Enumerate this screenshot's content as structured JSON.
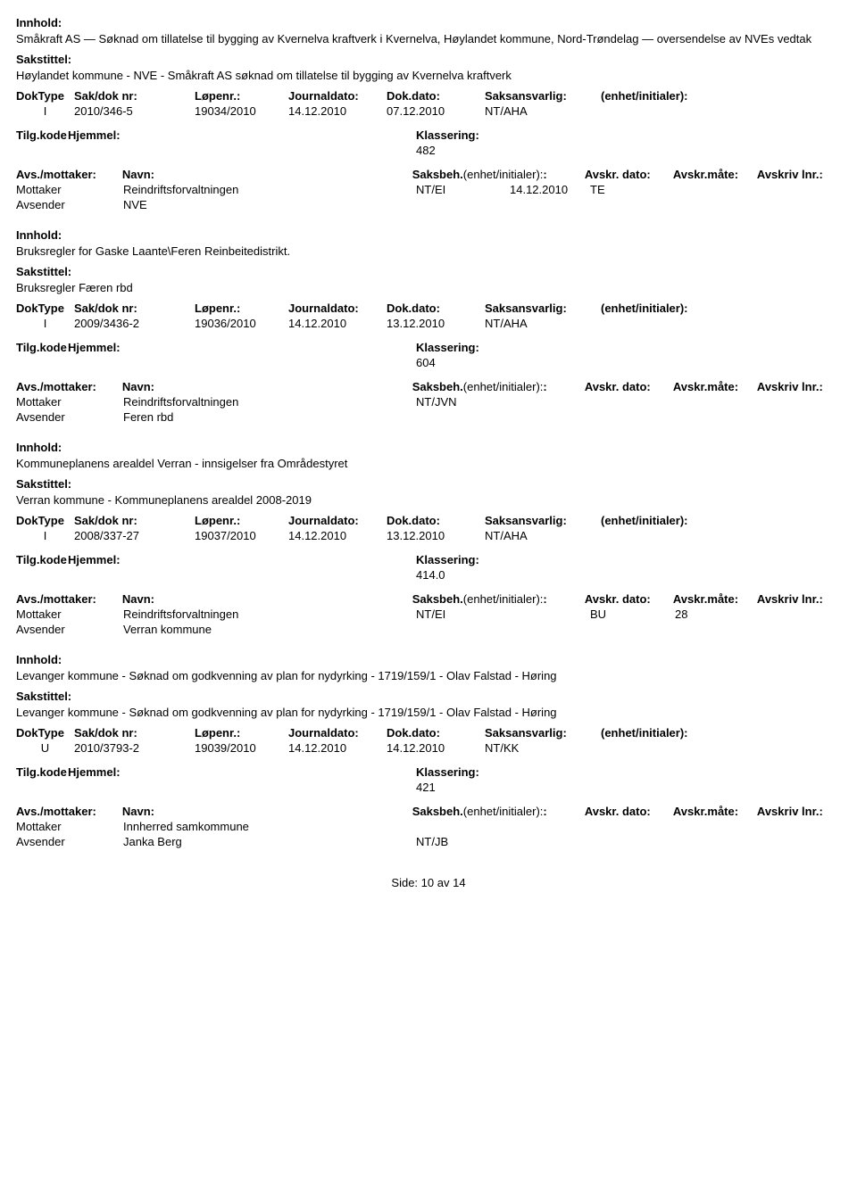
{
  "labels": {
    "innhold": "Innhold:",
    "sakstittel": "Sakstittel:",
    "doktype": "DokType",
    "sakdok": "Sak/dok nr:",
    "lopenr": "Løpenr.:",
    "journaldato": "Journaldato:",
    "dokdato": "Dok.dato:",
    "saksansvarlig": "Saksansvarlig:",
    "enhet": "(enhet/initialer):",
    "tilgkode": "Tilg.kode",
    "hjemmel": "Hjemmel:",
    "klassering": "Klassering:",
    "avsmottaker": "Avs./mottaker:",
    "navn": "Navn:",
    "saksbeh": "Saksbeh.",
    "avskrdato": "Avskr. dato:",
    "avskrmate": "Avskr.måte:",
    "avskrivlnr": "Avskriv lnr.:",
    "mottaker": "Mottaker",
    "avsender": "Avsender"
  },
  "records": [
    {
      "innhold": "Småkraft AS — Søknad om tillatelse til bygging av Kvernelva kraftverk i Kvernelva, Høylandet kommune, Nord-Trøndelag — oversendelse av NVEs vedtak",
      "sakstittel": "Høylandet kommune - NVE - Småkraft AS søknad om tillatelse til bygging av Kvernelva kraftverk",
      "doktype": "I",
      "sakdok": "2010/346-5",
      "lopenr": "19034/2010",
      "jdato": "14.12.2010",
      "ddato": "07.12.2010",
      "saksansv": "NT/AHA",
      "klassering": "482",
      "mottaker_navn": "Reindriftsforvaltningen",
      "mottaker_beh": "NT/EI",
      "mottaker_avskrd": "14.12.2010",
      "mottaker_avskrm": "TE",
      "mottaker_avskrl": "",
      "avsender_navn": "NVE"
    },
    {
      "innhold": "Bruksregler for Gaske Laante\\Feren Reinbeitedistrikt.",
      "sakstittel": "Bruksregler Færen rbd",
      "doktype": "I",
      "sakdok": "2009/3436-2",
      "lopenr": "19036/2010",
      "jdato": "14.12.2010",
      "ddato": "13.12.2010",
      "saksansv": "NT/AHA",
      "klassering": "604",
      "mottaker_navn": "Reindriftsforvaltningen",
      "mottaker_beh": "NT/JVN",
      "mottaker_avskrd": "",
      "mottaker_avskrm": "",
      "mottaker_avskrl": "",
      "avsender_navn": "Feren rbd"
    },
    {
      "innhold": "Kommuneplanens arealdel Verran -  innsigelser fra Områdestyret",
      "sakstittel": "Verran kommune - Kommuneplanens arealdel 2008-2019",
      "doktype": "I",
      "sakdok": "2008/337-27",
      "lopenr": "19037/2010",
      "jdato": "14.12.2010",
      "ddato": "13.12.2010",
      "saksansv": "NT/AHA",
      "klassering": "414.0",
      "mottaker_navn": "Reindriftsforvaltningen",
      "mottaker_beh": "NT/EI",
      "mottaker_avskrd": "",
      "mottaker_avskrm": "BU",
      "mottaker_avskrl": "28",
      "avsender_navn": "Verran kommune"
    },
    {
      "innhold": "Levanger kommune - Søknad om godkvenning av plan for nydyrking - 1719/159/1 - Olav Falstad - Høring",
      "sakstittel": "Levanger kommune - Søknad om godkvenning av plan for nydyrking - 1719/159/1 - Olav Falstad - Høring",
      "doktype": "U",
      "sakdok": "2010/3793-2",
      "lopenr": "19039/2010",
      "jdato": "14.12.2010",
      "ddato": "14.12.2010",
      "saksansv": "NT/KK",
      "klassering": "421",
      "mottaker_navn": "Innherred samkommune",
      "mottaker_beh": "",
      "mottaker_avskrd": "",
      "mottaker_avskrm": "",
      "mottaker_avskrl": "",
      "avsender_navn": "Janka Berg",
      "avsender_beh": "NT/JB"
    }
  ],
  "footer": {
    "side_label": "Side:",
    "page": "10",
    "sep": "av",
    "total": "14"
  }
}
